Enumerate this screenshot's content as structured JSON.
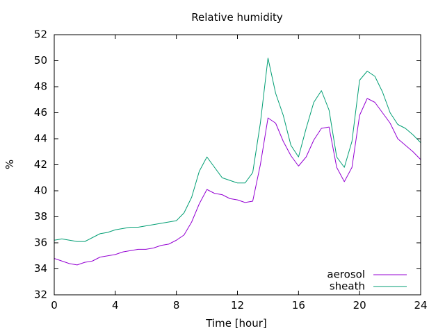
{
  "chart_data": {
    "type": "line",
    "title": "Relative humidity",
    "xlabel": "Time [hour]",
    "ylabel": "%",
    "xlim": [
      0,
      24
    ],
    "ylim": [
      32,
      52
    ],
    "x_ticks": [
      0,
      4,
      8,
      12,
      16,
      20,
      24
    ],
    "y_ticks": [
      32,
      34,
      36,
      38,
      40,
      42,
      44,
      46,
      48,
      50,
      52
    ],
    "grid": false,
    "legend_position": "bottom-right",
    "series": [
      {
        "name": "aerosol",
        "color": "#9400d3",
        "x": [
          0,
          0.5,
          1,
          1.5,
          2,
          2.5,
          3,
          3.5,
          4,
          4.5,
          5,
          5.5,
          6,
          6.5,
          7,
          7.5,
          8,
          8.5,
          9,
          9.5,
          10,
          10.5,
          11,
          11.5,
          12,
          12.5,
          13,
          13.5,
          14,
          14.5,
          15,
          15.5,
          16,
          16.5,
          17,
          17.5,
          18,
          18.5,
          19,
          19.5,
          20,
          20.5,
          21,
          21.5,
          22,
          22.5,
          23,
          23.5,
          24
        ],
        "y": [
          34.8,
          34.6,
          34.4,
          34.3,
          34.5,
          34.6,
          34.9,
          35.0,
          35.1,
          35.3,
          35.4,
          35.5,
          35.5,
          35.6,
          35.8,
          35.9,
          36.2,
          36.6,
          37.6,
          39.0,
          40.1,
          39.8,
          39.7,
          39.4,
          39.3,
          39.1,
          39.2,
          42.0,
          45.6,
          45.2,
          43.8,
          42.7,
          41.9,
          42.6,
          43.9,
          44.8,
          44.9,
          41.8,
          40.7,
          41.8,
          45.8,
          47.1,
          46.8,
          46.0,
          45.2,
          44.0,
          43.5,
          43.0,
          42.4
        ]
      },
      {
        "name": "sheath",
        "color": "#009e73",
        "x": [
          0,
          0.5,
          1,
          1.5,
          2,
          2.5,
          3,
          3.5,
          4,
          4.5,
          5,
          5.5,
          6,
          6.5,
          7,
          7.5,
          8,
          8.5,
          9,
          9.5,
          10,
          10.5,
          11,
          11.5,
          12,
          12.5,
          13,
          13.5,
          14,
          14.5,
          15,
          15.5,
          16,
          16.5,
          17,
          17.5,
          18,
          18.5,
          19,
          19.5,
          20,
          20.5,
          21,
          21.5,
          22,
          22.5,
          23,
          23.5,
          24
        ],
        "y": [
          36.2,
          36.3,
          36.2,
          36.1,
          36.1,
          36.4,
          36.7,
          36.8,
          37.0,
          37.1,
          37.2,
          37.2,
          37.3,
          37.4,
          37.5,
          37.6,
          37.7,
          38.3,
          39.5,
          41.5,
          42.6,
          41.8,
          41.0,
          40.8,
          40.6,
          40.6,
          41.4,
          45.2,
          50.2,
          47.5,
          45.8,
          43.5,
          42.6,
          44.8,
          46.8,
          47.7,
          46.2,
          42.6,
          41.8,
          43.8,
          48.5,
          49.2,
          48.8,
          47.6,
          46.0,
          45.1,
          44.8,
          44.3,
          43.7
        ]
      }
    ]
  }
}
